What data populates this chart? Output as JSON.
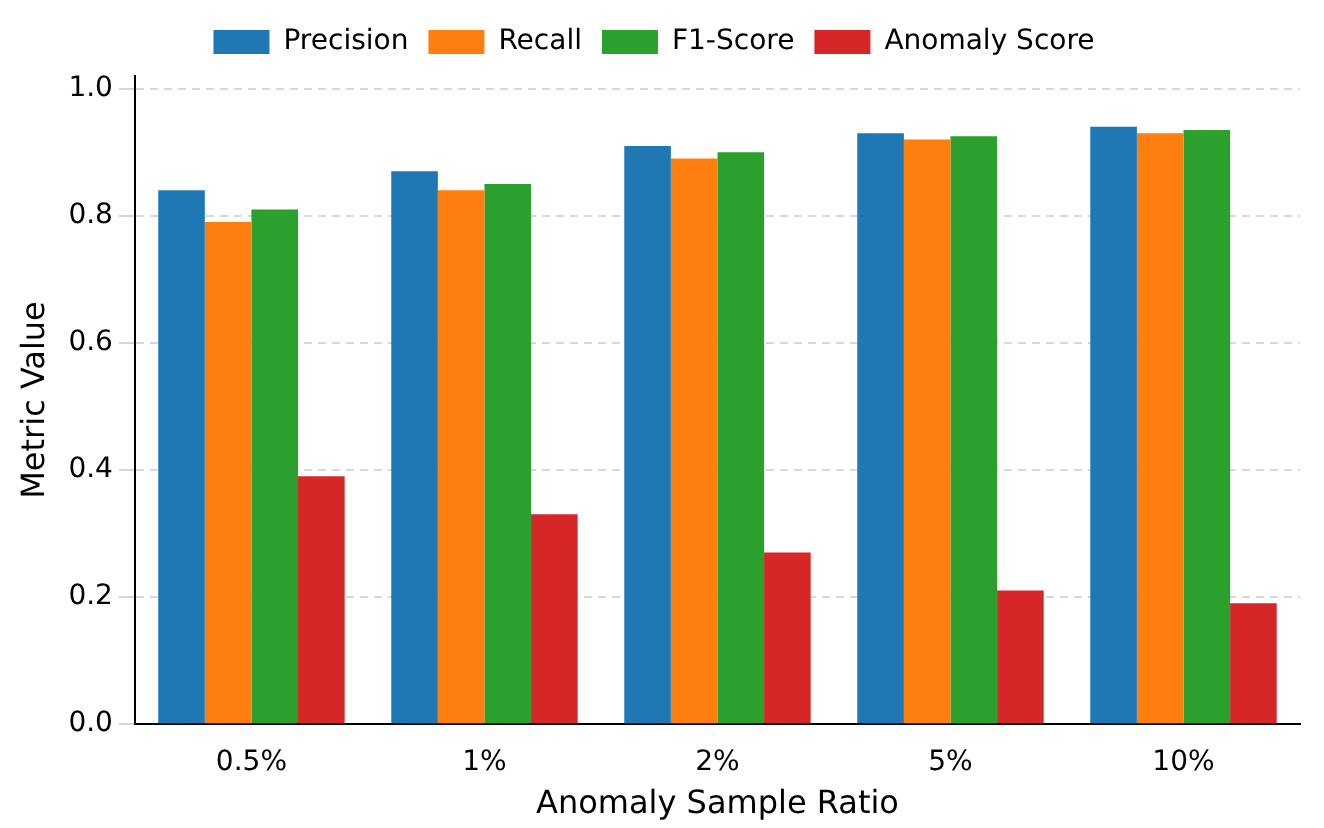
{
  "chart_data": {
    "type": "bar",
    "xlabel": "Anomaly Sample Ratio",
    "ylabel": "Metric Value",
    "categories": [
      "0.5%",
      "1%",
      "2%",
      "5%",
      "10%"
    ],
    "series": [
      {
        "name": "Precision",
        "color": "#1f77b4",
        "values": [
          0.84,
          0.87,
          0.91,
          0.93,
          0.94
        ]
      },
      {
        "name": "Recall",
        "color": "#ff7f0e",
        "values": [
          0.79,
          0.84,
          0.89,
          0.92,
          0.93
        ]
      },
      {
        "name": "F1-Score",
        "color": "#2ca02c",
        "values": [
          0.81,
          0.85,
          0.9,
          0.925,
          0.935
        ]
      },
      {
        "name": "Anomaly Score",
        "color": "#d62728",
        "values": [
          0.39,
          0.33,
          0.27,
          0.21,
          0.19
        ]
      }
    ],
    "ylim": [
      0,
      1.02
    ],
    "yticks": [
      {
        "value": 0,
        "label": "0.0"
      },
      0.2,
      0.4,
      0.6,
      0.8,
      {
        "value": 1,
        "label": "1.0"
      }
    ],
    "grid": "y",
    "legend": "top"
  }
}
